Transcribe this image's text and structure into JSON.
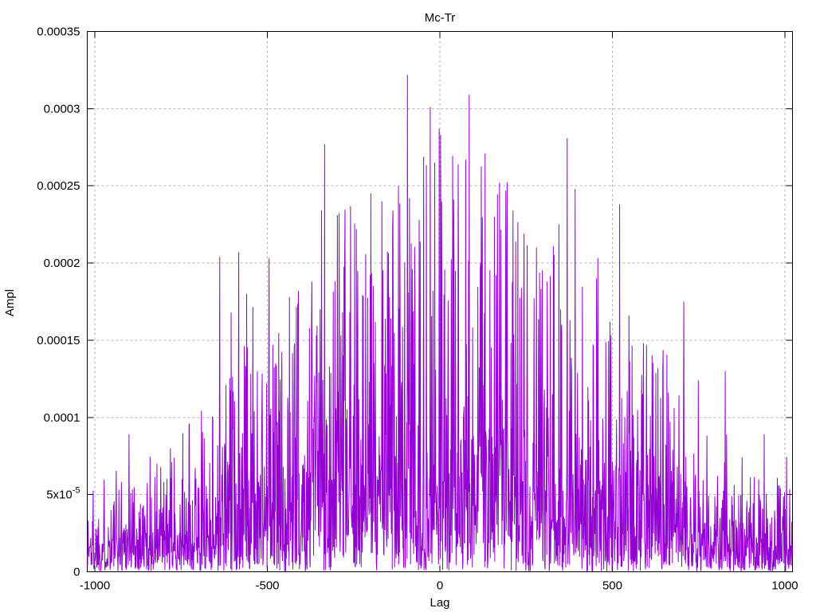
{
  "chart_data": {
    "type": "line",
    "title": "Mc-Tr",
    "xlabel": "Lag",
    "ylabel": "Ampl",
    "xlim": [
      -1022,
      1022
    ],
    "ylim": [
      0,
      0.00035
    ],
    "xticks": [
      {
        "v": -1000,
        "label": "-1000"
      },
      {
        "v": -500,
        "label": "-500"
      },
      {
        "v": 0,
        "label": "0"
      },
      {
        "v": 500,
        "label": "500"
      },
      {
        "v": 1000,
        "label": "1000"
      }
    ],
    "yticks": [
      {
        "v": 0,
        "label": "0"
      },
      {
        "v": 5e-05,
        "label": "5x10^-5"
      },
      {
        "v": 0.0001,
        "label": "0.0001"
      },
      {
        "v": 0.00015,
        "label": "0.00015"
      },
      {
        "v": 0.0002,
        "label": "0.0002"
      },
      {
        "v": 0.00025,
        "label": "0.00025"
      },
      {
        "v": 0.0003,
        "label": "0.0003"
      },
      {
        "v": 0.00035,
        "label": "0.00035"
      }
    ],
    "grid": true,
    "legend": "none",
    "line_color": "#9400d3",
    "grid_color": "#b0b0b0",
    "border_color": "#000000",
    "background_color": "#ffffff",
    "series_description": "dense impulsive cross-correlation noise, amplitude envelope peaking near lag 0 and decaying toward +/-1000",
    "noise_model": {
      "seed": 1337,
      "lag_step": 1,
      "distribution": "exponential",
      "tail_knee": 2.5,
      "tail_scale": 0.4,
      "max_factor": 3.4,
      "envelope_mean": [
        [
          -1022,
          2e-05
        ],
        [
          -900,
          2.4e-05
        ],
        [
          -800,
          2.2e-05
        ],
        [
          -700,
          3e-05
        ],
        [
          -640,
          4.2e-05
        ],
        [
          -560,
          5e-05
        ],
        [
          -480,
          5.2e-05
        ],
        [
          -400,
          6e-05
        ],
        [
          -300,
          6.8e-05
        ],
        [
          -200,
          7.2e-05
        ],
        [
          -100,
          7.8e-05
        ],
        [
          0,
          8e-05
        ],
        [
          100,
          7.8e-05
        ],
        [
          200,
          7.4e-05
        ],
        [
          300,
          6.8e-05
        ],
        [
          400,
          6.5e-05
        ],
        [
          500,
          5.6e-05
        ],
        [
          600,
          4.6e-05
        ],
        [
          700,
          3.8e-05
        ],
        [
          800,
          2.8e-05
        ],
        [
          900,
          2.2e-05
        ],
        [
          1022,
          2.2e-05
        ]
      ]
    },
    "notable_peaks": [
      [
        -901,
        8.9e-05
      ],
      [
        -820,
        7e-05
      ],
      [
        -726,
        9.6e-05
      ],
      [
        -638,
        0.000204
      ],
      [
        -605,
        0.000168
      ],
      [
        -583,
        0.000207
      ],
      [
        -560,
        0.00018
      ],
      [
        -495,
        0.000203
      ],
      [
        -436,
        0.000178
      ],
      [
        -410,
        0.000182
      ],
      [
        -371,
        0.000188
      ],
      [
        -343,
        0.000234
      ],
      [
        -334,
        0.000277
      ],
      [
        -297,
        0.000231
      ],
      [
        -242,
        0.000222
      ],
      [
        -200,
        0.000245
      ],
      [
        -168,
        0.00024
      ],
      [
        -136,
        0.000234
      ],
      [
        -120,
        0.00025
      ],
      [
        -94,
        0.000322
      ],
      [
        -88,
        0.000242
      ],
      [
        -60,
        0.000228
      ],
      [
        -28,
        0.000301
      ],
      [
        -2,
        0.000287
      ],
      [
        2,
        0.000283
      ],
      [
        45,
        0.000195
      ],
      [
        85,
        0.000309
      ],
      [
        131,
        0.000271
      ],
      [
        173,
        0.000252
      ],
      [
        191,
        0.000247
      ],
      [
        212,
        0.000234
      ],
      [
        244,
        0.000219
      ],
      [
        280,
        0.00021
      ],
      [
        311,
        0.000188
      ],
      [
        345,
        0.000225
      ],
      [
        369,
        0.000281
      ],
      [
        392,
        0.000248
      ],
      [
        454,
        0.00019
      ],
      [
        521,
        0.000238
      ],
      [
        548,
        0.000166
      ],
      [
        599,
        0.000147
      ],
      [
        646,
        0.00013
      ],
      [
        707,
        0.000175
      ],
      [
        749,
        0.000124
      ],
      [
        827,
        0.00013
      ],
      [
        940,
        8.9e-05
      ]
    ]
  }
}
